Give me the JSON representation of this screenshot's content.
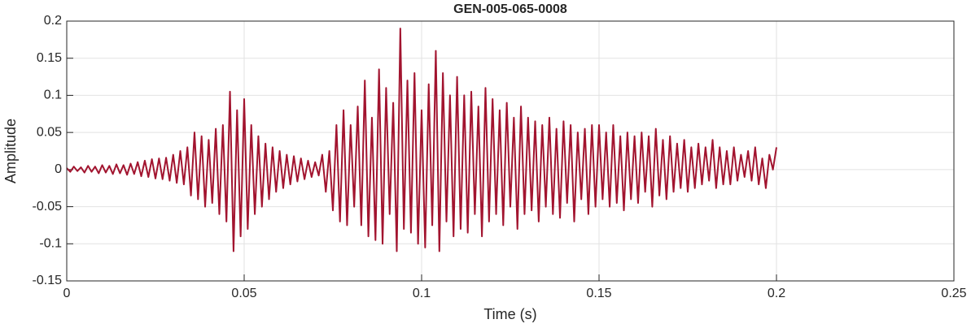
{
  "chart_data": {
    "type": "line",
    "title": "GEN-005-065-0008",
    "x_label": "Time (s)",
    "y_label": "Amplitude",
    "x": [
      0,
      0.001,
      0.002,
      0.003,
      0.004,
      0.005,
      0.006,
      0.007,
      0.008,
      0.009,
      0.01,
      0.011,
      0.012,
      0.013,
      0.014,
      0.015,
      0.016,
      0.017,
      0.018,
      0.019,
      0.02,
      0.021,
      0.022,
      0.023,
      0.024,
      0.025,
      0.026,
      0.027,
      0.028,
      0.029,
      0.03,
      0.031,
      0.032,
      0.033,
      0.034,
      0.035,
      0.036,
      0.037,
      0.038,
      0.039,
      0.04,
      0.041,
      0.042,
      0.043,
      0.044,
      0.045,
      0.046,
      0.047,
      0.048,
      0.049,
      0.05,
      0.051,
      0.052,
      0.053,
      0.054,
      0.055,
      0.056,
      0.057,
      0.058,
      0.059,
      0.06,
      0.061,
      0.062,
      0.063,
      0.064,
      0.065,
      0.066,
      0.067,
      0.068,
      0.069,
      0.07,
      0.071,
      0.072,
      0.073,
      0.074,
      0.075,
      0.076,
      0.077,
      0.078,
      0.079,
      0.08,
      0.081,
      0.082,
      0.083,
      0.084,
      0.085,
      0.086,
      0.087,
      0.088,
      0.089,
      0.09,
      0.091,
      0.092,
      0.093,
      0.094,
      0.095,
      0.096,
      0.097,
      0.098,
      0.099,
      0.1,
      0.101,
      0.102,
      0.103,
      0.104,
      0.105,
      0.106,
      0.107,
      0.108,
      0.109,
      0.11,
      0.111,
      0.112,
      0.113,
      0.114,
      0.115,
      0.116,
      0.117,
      0.118,
      0.119,
      0.12,
      0.121,
      0.122,
      0.123,
      0.124,
      0.125,
      0.126,
      0.127,
      0.128,
      0.129,
      0.13,
      0.131,
      0.132,
      0.133,
      0.134,
      0.135,
      0.136,
      0.137,
      0.138,
      0.139,
      0.14,
      0.141,
      0.142,
      0.143,
      0.144,
      0.145,
      0.146,
      0.147,
      0.148,
      0.149,
      0.15,
      0.151,
      0.152,
      0.153,
      0.154,
      0.155,
      0.156,
      0.157,
      0.158,
      0.159,
      0.16,
      0.161,
      0.162,
      0.163,
      0.164,
      0.165,
      0.166,
      0.167,
      0.168,
      0.169,
      0.17,
      0.171,
      0.172,
      0.173,
      0.174,
      0.175,
      0.176,
      0.177,
      0.178,
      0.179,
      0.18,
      0.181,
      0.182,
      0.183,
      0.184,
      0.185,
      0.186,
      0.187,
      0.188,
      0.189,
      0.19,
      0.191,
      0.192,
      0.193,
      0.194,
      0.195,
      0.196,
      0.197,
      0.198,
      0.199,
      0.2
    ],
    "values": [
      0.002,
      -0.003,
      0.004,
      -0.002,
      0.003,
      -0.004,
      0.005,
      -0.003,
      0.004,
      -0.005,
      0.006,
      -0.004,
      0.005,
      -0.006,
      0.007,
      -0.005,
      0.006,
      -0.007,
      0.008,
      -0.006,
      0.01,
      -0.009,
      0.012,
      -0.01,
      0.014,
      -0.012,
      0.015,
      -0.013,
      0.016,
      -0.015,
      0.02,
      -0.018,
      0.025,
      -0.02,
      0.03,
      -0.035,
      0.05,
      -0.04,
      0.045,
      -0.05,
      0.04,
      -0.045,
      0.055,
      -0.06,
      0.06,
      -0.07,
      0.105,
      -0.11,
      0.08,
      -0.09,
      0.095,
      -0.08,
      0.06,
      -0.06,
      0.045,
      -0.05,
      0.035,
      -0.04,
      0.03,
      -0.03,
      0.025,
      -0.025,
      0.02,
      -0.02,
      0.018,
      -0.016,
      0.015,
      -0.013,
      0.012,
      -0.01,
      0.01,
      -0.008,
      0.02,
      -0.03,
      0.025,
      -0.055,
      0.06,
      -0.07,
      0.08,
      -0.075,
      0.06,
      -0.05,
      0.085,
      -0.075,
      0.12,
      -0.09,
      0.07,
      -0.095,
      0.135,
      -0.1,
      0.11,
      -0.06,
      0.09,
      -0.11,
      0.19,
      -0.08,
      0.12,
      -0.085,
      0.13,
      -0.1,
      0.08,
      -0.105,
      0.115,
      -0.075,
      0.16,
      -0.11,
      0.13,
      -0.07,
      0.1,
      -0.09,
      0.125,
      -0.08,
      0.1,
      -0.085,
      0.105,
      -0.06,
      0.085,
      -0.09,
      0.11,
      -0.07,
      0.095,
      -0.06,
      0.08,
      -0.075,
      0.09,
      -0.05,
      0.07,
      -0.08,
      0.085,
      -0.06,
      0.07,
      -0.055,
      0.065,
      -0.07,
      0.06,
      -0.05,
      0.07,
      -0.06,
      0.055,
      -0.065,
      0.065,
      -0.045,
      0.06,
      -0.07,
      0.05,
      -0.04,
      0.055,
      -0.06,
      0.06,
      -0.05,
      0.06,
      -0.04,
      0.05,
      -0.05,
      0.06,
      -0.045,
      0.045,
      -0.055,
      0.05,
      -0.04,
      0.045,
      -0.045,
      0.05,
      -0.03,
      0.045,
      -0.05,
      0.055,
      -0.035,
      0.04,
      -0.04,
      0.045,
      -0.03,
      0.035,
      -0.025,
      0.04,
      -0.03,
      0.03,
      -0.025,
      0.035,
      -0.02,
      0.03,
      -0.015,
      0.04,
      -0.025,
      0.03,
      -0.02,
      0.025,
      -0.02,
      0.03,
      -0.015,
      0.02,
      -0.01,
      0.025,
      -0.015,
      0.03,
      -0.02,
      0.015,
      -0.025,
      0.02,
      0.0,
      0.03
    ],
    "color": "#a2142f",
    "xlim": [
      0,
      0.25
    ],
    "xticks": [
      0,
      0.05,
      0.1,
      0.15,
      0.2,
      0.25
    ],
    "ylim": [
      -0.15,
      0.2
    ],
    "yticks": [
      -0.15,
      -0.1,
      -0.05,
      0,
      0.05,
      0.1,
      0.15,
      0.2
    ],
    "grid": true
  }
}
